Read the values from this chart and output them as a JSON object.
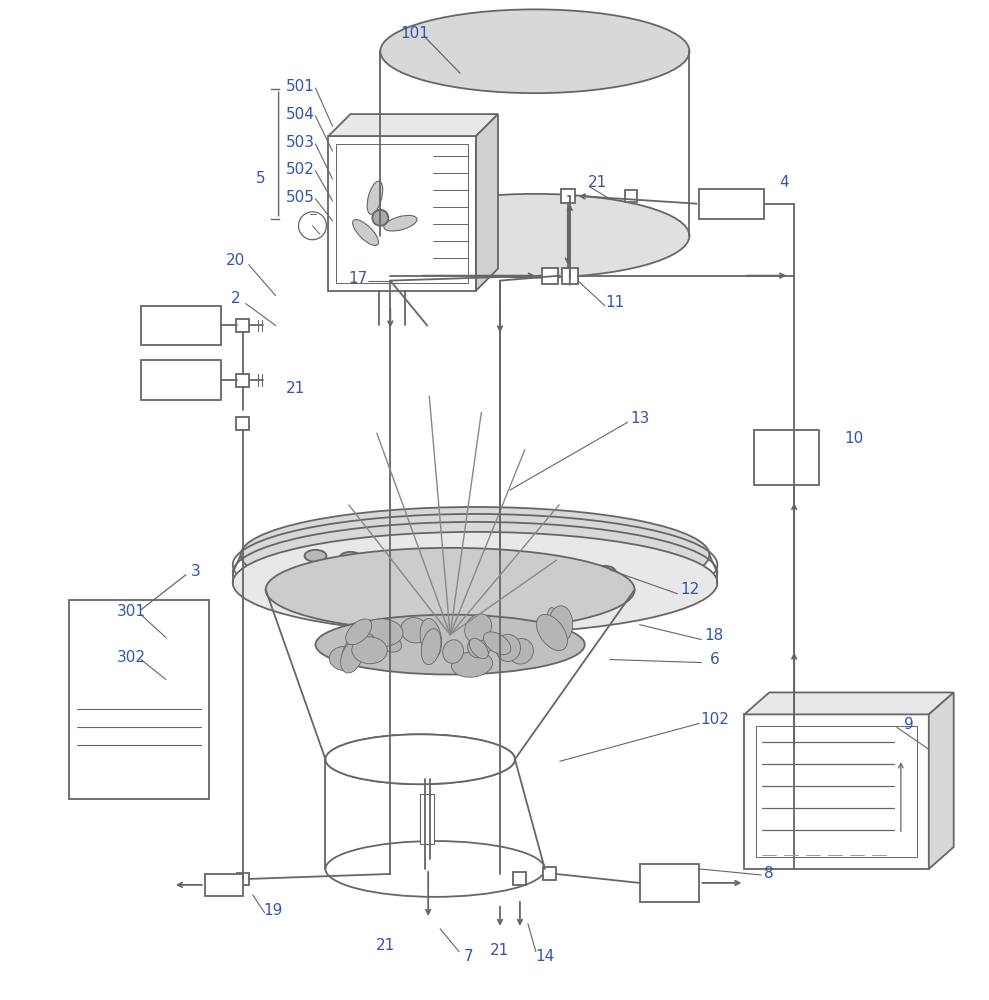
{
  "bg_color": "#ffffff",
  "line_color": "#666666",
  "label_color": "#3355aa",
  "lw": 1.3
}
